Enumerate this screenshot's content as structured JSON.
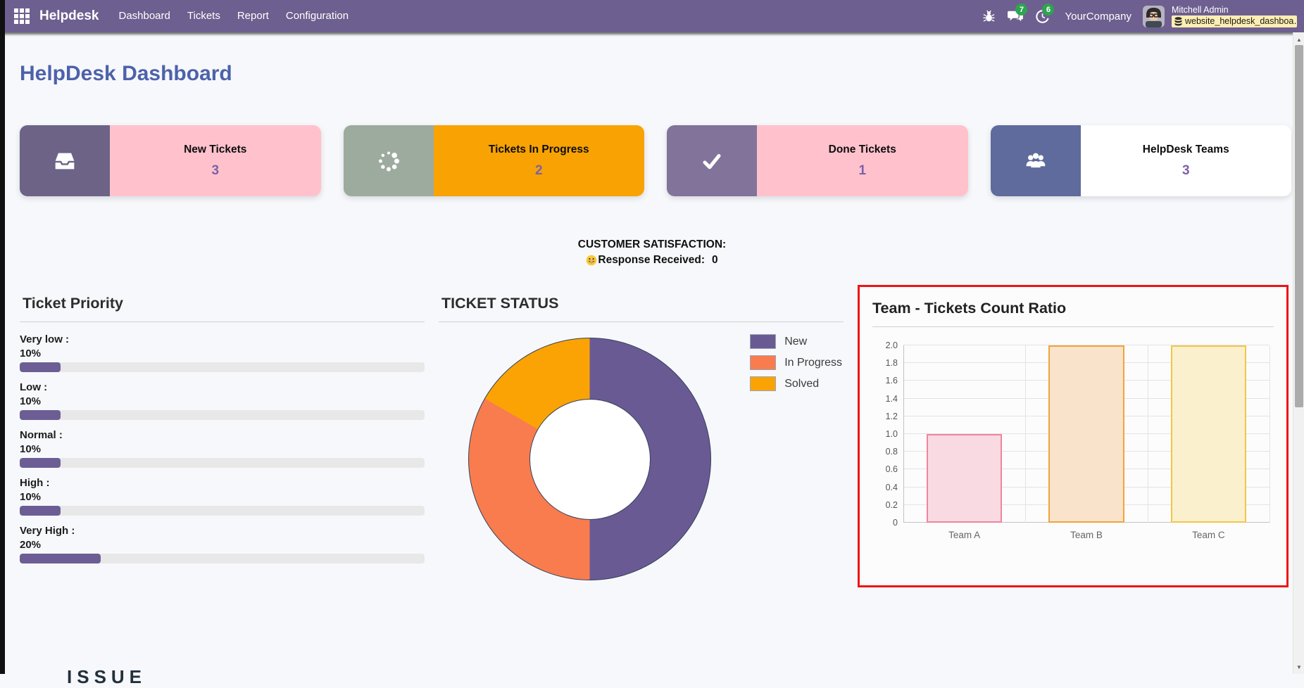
{
  "navbar": {
    "app_name": "Helpdesk",
    "apps_icon": "apps-grid-icon",
    "menus": [
      "Dashboard",
      "Tickets",
      "Report",
      "Configuration"
    ],
    "systray": {
      "debug_icon": "bug-icon",
      "messages": {
        "icon": "chat-icon",
        "badge": "7"
      },
      "activities": {
        "icon": "clock-icon",
        "badge": "6"
      },
      "company": "YourCompany",
      "avatar_icon": "user-avatar",
      "user_name": "Mitchell Admin",
      "db_icon": "database-icon",
      "db_name": "website_helpdesk_dashboa…"
    }
  },
  "page": {
    "title": "HelpDesk Dashboard",
    "clipped_bottom_heading": "ISSUE"
  },
  "kpis": [
    {
      "label": "New Tickets",
      "value": "3",
      "icon": "inbox-icon",
      "icon_bg": "#6c6387",
      "body_bg": "#ffc2cd",
      "value_color": "#7d61a8"
    },
    {
      "label": "Tickets In Progress",
      "value": "2",
      "icon": "spinner-icon",
      "icon_bg": "#9dab9f",
      "body_bg": "#f8a303",
      "value_color": "#7d61a8"
    },
    {
      "label": "Done Tickets",
      "value": "1",
      "icon": "check-icon",
      "icon_bg": "#82739a",
      "body_bg": "#ffc2cd",
      "value_color": "#7d61a8"
    },
    {
      "label": "HelpDesk Teams",
      "value": "3",
      "icon": "users-icon",
      "icon_bg": "#5e6b9c",
      "body_bg": "#ffffff",
      "value_color": "#7d61a8"
    }
  ],
  "satisfaction": {
    "title": "CUSTOMER SATISFACTION:",
    "emoji_icon": "smiley-icon",
    "label": "Response Received:",
    "value": "0"
  },
  "panels": {
    "priority": {
      "title": "Ticket Priority",
      "bar_color": "#6c5e95",
      "track_color": "#e8e8e8",
      "items": [
        {
          "label": "Very low :",
          "pct_label": "10%",
          "pct": 10
        },
        {
          "label": "Low :",
          "pct_label": "10%",
          "pct": 10
        },
        {
          "label": "Normal :",
          "pct_label": "10%",
          "pct": 10
        },
        {
          "label": "High :",
          "pct_label": "10%",
          "pct": 10
        },
        {
          "label": "Very High :",
          "pct_label": "20%",
          "pct": 20
        }
      ]
    },
    "status": {
      "title": "TICKET STATUS"
    },
    "team": {
      "title": "Team - Tickets Count Ratio",
      "highlight_color": "#ee1414"
    }
  },
  "chart_data": [
    {
      "type": "pie",
      "title": "TICKET STATUS",
      "labels": [
        "New",
        "In Progress",
        "Solved"
      ],
      "values": [
        3,
        2,
        1
      ],
      "colors": [
        "#6a5a94",
        "#f97c4e",
        "#fba304"
      ],
      "hole": 0.5,
      "legend_position": "right"
    },
    {
      "type": "bar",
      "title": "Team - Tickets Count Ratio",
      "categories": [
        "Team A",
        "Team B",
        "Team C"
      ],
      "values": [
        1,
        2,
        2
      ],
      "ylim": [
        0,
        2
      ],
      "ytick_step": 0.2,
      "grid": true,
      "bar_styles": [
        {
          "fill": "#f9dae2",
          "border": "#f0849f"
        },
        {
          "fill": "#f9e4cb",
          "border": "#f2a33c"
        },
        {
          "fill": "#faf0cd",
          "border": "#f3c64a"
        }
      ]
    },
    {
      "type": "bar",
      "title": "Ticket Priority",
      "categories": [
        "Very low",
        "Low",
        "Normal",
        "High",
        "Very High"
      ],
      "values": [
        10,
        10,
        10,
        10,
        20
      ],
      "unit": "%",
      "ylim": [
        0,
        100
      ]
    }
  ]
}
